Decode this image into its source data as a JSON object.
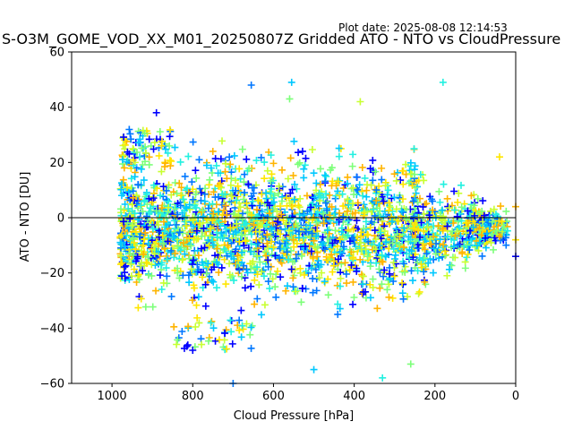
{
  "chart_data": {
    "type": "scatter",
    "title": "S-O3M_GOME_VOD_XX_M01_20250807Z Gridded ATO - NTO vs CloudPressure",
    "plot_date": "Plot date: 2025-08-08 12:14:53",
    "xlabel": "Cloud Pressure [hPa]",
    "ylabel": "ATO - NTO [DU]",
    "xlim": [
      1100,
      0
    ],
    "ylim": [
      -60,
      60
    ],
    "x_ticks": [
      1000,
      800,
      600,
      400,
      200,
      0
    ],
    "y_ticks": [
      60,
      40,
      20,
      0,
      -20,
      -40,
      -60
    ],
    "marker": "plus",
    "reference_line_y": 0,
    "grid": false,
    "colors": [
      "#0000ff",
      "#0077ff",
      "#00c8ff",
      "#22f0e0",
      "#7dff7a",
      "#c8ff32",
      "#ffe600",
      "#ffb400"
    ],
    "point_density": {
      "pressure_range": [
        1000,
        0
      ],
      "core_spread_du": [
        -40,
        30
      ],
      "note_points": [
        {
          "x": 890,
          "y": 38
        },
        {
          "x": 655,
          "y": 48
        },
        {
          "x": 555,
          "y": 49
        },
        {
          "x": 180,
          "y": 49
        },
        {
          "x": 560,
          "y": 43
        },
        {
          "x": 385,
          "y": 42
        },
        {
          "x": 40,
          "y": 22
        },
        {
          "x": 110,
          "y": 8
        },
        {
          "x": 800,
          "y": -48
        },
        {
          "x": 700,
          "y": -60
        },
        {
          "x": 500,
          "y": -55
        },
        {
          "x": 330,
          "y": -58
        },
        {
          "x": 260,
          "y": -53
        },
        {
          "x": 170,
          "y": -21
        },
        {
          "x": 0,
          "y": -8
        },
        {
          "x": 0,
          "y": 4
        },
        {
          "x": 0,
          "y": -14
        }
      ]
    }
  }
}
